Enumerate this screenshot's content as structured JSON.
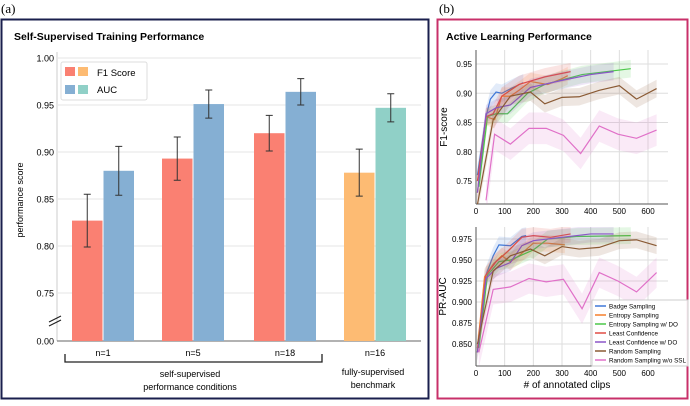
{
  "chart_data": [
    {
      "panel_label": "(a)",
      "type": "bar",
      "title": "Self-Supervised Training Performance",
      "ylabel": "performance score",
      "yticks": [
        "0.00",
        "0.75",
        "0.80",
        "0.85",
        "0.90",
        "0.95",
        "1.00"
      ],
      "ylim": [
        0.7,
        1.0
      ],
      "axis_break": true,
      "grid": true,
      "legend": {
        "placement": "top-left",
        "entries": [
          "F1 Score",
          "AUC"
        ]
      },
      "categories": [
        "n=1",
        "n=5",
        "n=18",
        "n=16"
      ],
      "series": [
        {
          "name": "F1 Score",
          "values": [
            0.827,
            0.893,
            0.92,
            0.878
          ],
          "errors": [
            0.028,
            0.023,
            0.019,
            0.025
          ],
          "colors": [
            "#fa8072",
            "#fa8072",
            "#fa8072",
            "#fdbb73"
          ]
        },
        {
          "name": "AUC",
          "values": [
            0.88,
            0.951,
            0.964,
            0.947
          ],
          "errors": [
            0.026,
            0.015,
            0.014,
            0.015
          ],
          "colors": [
            "#85afd3",
            "#85afd3",
            "#85afd3",
            "#90d0c7"
          ]
        }
      ],
      "group_labels": [
        {
          "text_lines": [
            "self-supervised",
            "performance conditions"
          ],
          "bracket": true
        },
        {
          "text_lines": [
            "fully-supervised",
            "benchmark"
          ],
          "bracket": false
        }
      ],
      "frame_color": "#1a1f4d"
    },
    {
      "panel_label": "(b)",
      "type": "line",
      "title": "Active Learning Performance",
      "xlabel": "# of annotated clips",
      "xticks": [
        "0",
        "100",
        "200",
        "300",
        "400",
        "500",
        "600"
      ],
      "xlim": [
        0,
        665
      ],
      "frame_color": "#c8306a",
      "legend": {
        "placement": "bottom-right"
      },
      "series_meta": [
        {
          "name": "Badge Sampling",
          "color": "#3f78d8"
        },
        {
          "name": "Entropy Sampling",
          "color": "#f57f2a"
        },
        {
          "name": "Entropy Sampling w/ DO",
          "color": "#4cc84a"
        },
        {
          "name": "Least Confidence",
          "color": "#e04c44"
        },
        {
          "name": "Least Confidence w/ DO",
          "color": "#8a55c8"
        },
        {
          "name": "Random Sampling",
          "color": "#8a5a34"
        },
        {
          "name": "Random Sampling w/o SSL",
          "color": "#e070c8"
        }
      ],
      "subplots": [
        {
          "ylabel": "F1-score",
          "ylim": [
            0.71,
            0.97
          ],
          "yticks": [
            "0.75",
            "0.80",
            "0.85",
            "0.90",
            "0.95"
          ],
          "band": 0.015,
          "series": [
            [
              [
                5,
                0.76
              ],
              [
                35,
                0.86
              ],
              [
                50,
                0.89
              ],
              [
                70,
                0.902
              ],
              [
                90,
                0.9
              ],
              [
                130,
                0.91
              ],
              [
                165,
                0.918
              ]
            ],
            [
              [
                5,
                0.73
              ],
              [
                35,
                0.86
              ],
              [
                65,
                0.855
              ],
              [
                90,
                0.895
              ],
              [
                120,
                0.895
              ],
              [
                150,
                0.905
              ],
              [
                190,
                0.92
              ],
              [
                250,
                0.915
              ],
              [
                300,
                0.925
              ],
              [
                320,
                0.93
              ]
            ],
            [
              [
                10,
                0.74
              ],
              [
                40,
                0.86
              ],
              [
                70,
                0.865
              ],
              [
                110,
                0.865
              ],
              [
                180,
                0.9
              ],
              [
                240,
                0.915
              ],
              [
                370,
                0.932
              ],
              [
                540,
                0.942
              ]
            ],
            [
              [
                5,
                0.75
              ],
              [
                35,
                0.86
              ],
              [
                60,
                0.865
              ],
              [
                90,
                0.895
              ],
              [
                150,
                0.915
              ],
              [
                240,
                0.928
              ],
              [
                330,
                0.937
              ]
            ],
            [
              [
                5,
                0.73
              ],
              [
                35,
                0.865
              ],
              [
                70,
                0.875
              ],
              [
                120,
                0.88
              ],
              [
                190,
                0.91
              ],
              [
                300,
                0.922
              ],
              [
                400,
                0.932
              ],
              [
                480,
                0.937
              ]
            ],
            [
              [
                5,
                0.71
              ],
              [
                60,
                0.855
              ],
              [
                120,
                0.895
              ],
              [
                190,
                0.902
              ],
              [
                240,
                0.882
              ],
              [
                300,
                0.893
              ],
              [
                360,
                0.894
              ],
              [
                430,
                0.905
              ],
              [
                500,
                0.913
              ],
              [
                560,
                0.89
              ],
              [
                630,
                0.908
              ]
            ],
            [
              [
                35,
                0.717
              ],
              [
                65,
                0.83
              ],
              [
                120,
                0.813
              ],
              [
                185,
                0.84
              ],
              [
                245,
                0.84
              ],
              [
                305,
                0.828
              ],
              [
                365,
                0.797
              ],
              [
                430,
                0.844
              ],
              [
                495,
                0.83
              ],
              [
                560,
                0.823
              ],
              [
                630,
                0.837
              ]
            ]
          ]
        },
        {
          "ylabel": "PR-AUC",
          "ylim": [
            0.825,
            0.99
          ],
          "yticks": [
            "0.850",
            "0.875",
            "0.900",
            "0.925",
            "0.950",
            "0.975"
          ],
          "band": 0.01,
          "series": [
            [
              [
                5,
                0.84
              ],
              [
                30,
                0.928
              ],
              [
                60,
                0.955
              ],
              [
                80,
                0.968
              ],
              [
                120,
                0.967
              ],
              [
                160,
                0.978
              ],
              [
                175,
                0.979
              ]
            ],
            [
              [
                5,
                0.845
              ],
              [
                30,
                0.93
              ],
              [
                60,
                0.945
              ],
              [
                90,
                0.955
              ],
              [
                120,
                0.948
              ],
              [
                150,
                0.955
              ],
              [
                200,
                0.97
              ],
              [
                250,
                0.97
              ],
              [
                310,
                0.968
              ]
            ],
            [
              [
                10,
                0.845
              ],
              [
                40,
                0.932
              ],
              [
                80,
                0.948
              ],
              [
                120,
                0.95
              ],
              [
                200,
                0.962
              ],
              [
                250,
                0.975
              ],
              [
                350,
                0.978
              ],
              [
                540,
                0.979
              ]
            ],
            [
              [
                5,
                0.84
              ],
              [
                35,
                0.932
              ],
              [
                70,
                0.948
              ],
              [
                110,
                0.96
              ],
              [
                160,
                0.977
              ],
              [
                200,
                0.979
              ],
              [
                260,
                0.977
              ],
              [
                330,
                0.981
              ]
            ],
            [
              [
                5,
                0.84
              ],
              [
                35,
                0.928
              ],
              [
                70,
                0.94
              ],
              [
                120,
                0.947
              ],
              [
                160,
                0.967
              ],
              [
                200,
                0.973
              ],
              [
                300,
                0.977
              ],
              [
                400,
                0.981
              ],
              [
                480,
                0.981
              ]
            ],
            [
              [
                5,
                0.85
              ],
              [
                60,
                0.937
              ],
              [
                120,
                0.955
              ],
              [
                190,
                0.963
              ],
              [
                240,
                0.955
              ],
              [
                300,
                0.966
              ],
              [
                360,
                0.963
              ],
              [
                430,
                0.965
              ],
              [
                500,
                0.973
              ],
              [
                560,
                0.974
              ],
              [
                630,
                0.967
              ]
            ],
            [
              [
                10,
                0.84
              ],
              [
                60,
                0.915
              ],
              [
                120,
                0.918
              ],
              [
                185,
                0.928
              ],
              [
                245,
                0.924
              ],
              [
                305,
                0.927
              ],
              [
                370,
                0.892
              ],
              [
                430,
                0.935
              ],
              [
                495,
                0.925
              ],
              [
                560,
                0.912
              ],
              [
                630,
                0.935
              ]
            ]
          ]
        }
      ]
    }
  ]
}
